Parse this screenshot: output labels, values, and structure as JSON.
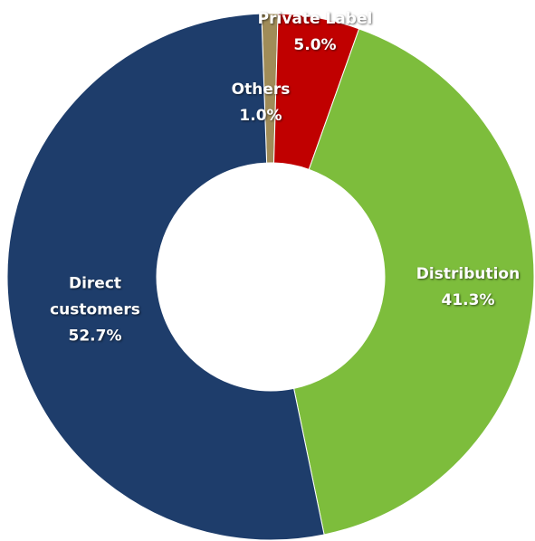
{
  "chart_data": {
    "type": "donut",
    "categories": [
      "Others",
      "Private Label",
      "Distribution",
      "Direct customers"
    ],
    "values": [
      1.0,
      5.0,
      41.3,
      52.7
    ],
    "value_labels": [
      "1.0%",
      "5.0%",
      "41.3%",
      "52.7%"
    ],
    "colors": [
      "#a08c58",
      "#c00000",
      "#7dbd3c",
      "#1e3d6b"
    ]
  }
}
